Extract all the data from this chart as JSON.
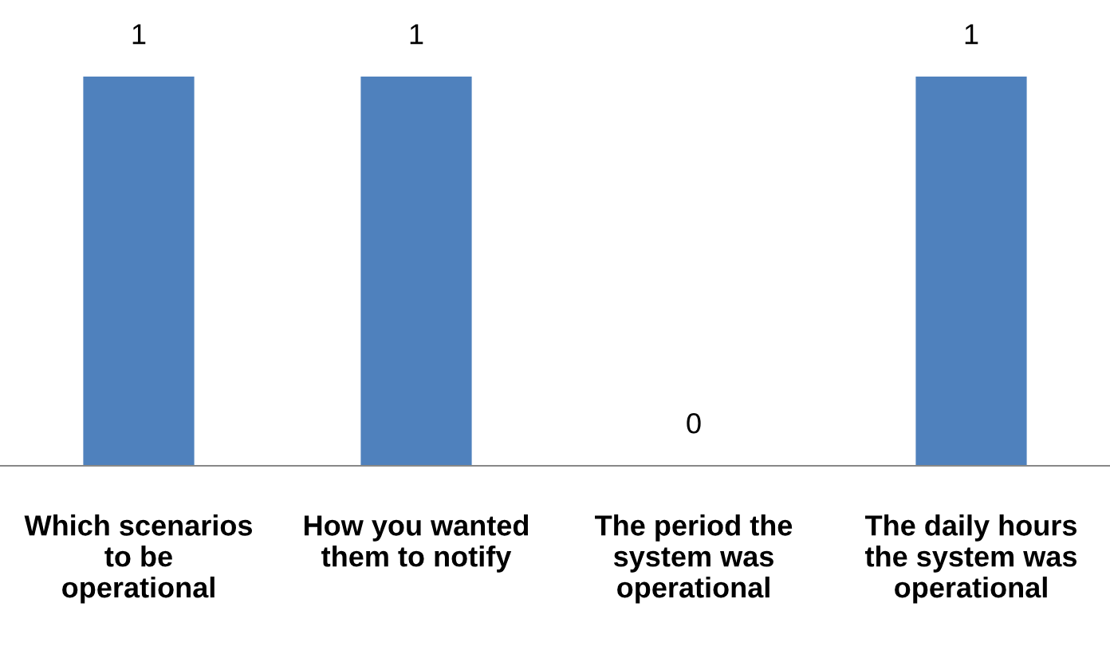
{
  "chart_data": {
    "type": "bar",
    "categories": [
      "Which scenarios to be operational",
      "How you wanted them to notify",
      "The period the system was operational",
      "The daily hours the system was operational"
    ],
    "values": [
      1,
      1,
      0,
      1
    ],
    "color": "#4f81bd",
    "data_labels": true,
    "grid": false,
    "legend": false
  }
}
